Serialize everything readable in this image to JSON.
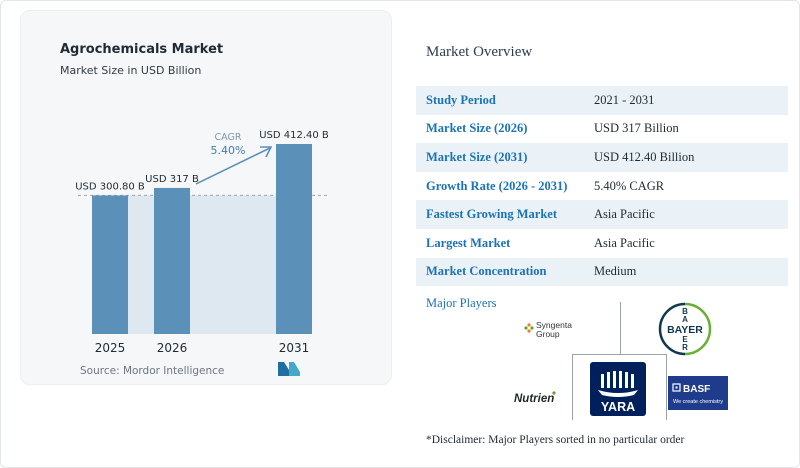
{
  "chart_data": {
    "type": "bar",
    "title": "Agrochemicals Market",
    "subtitle": "Market Size in USD Billion",
    "categories": [
      "2025",
      "2026",
      "2031"
    ],
    "values": [
      300.8,
      317,
      412.4
    ],
    "data_labels": [
      "USD 300.80 B",
      "USD 317 B",
      "USD 412.40 B"
    ],
    "cagr_label": "CAGR",
    "cagr_value": "5.40%",
    "bar_color": "#5b91b8",
    "band_color": "#dde8f0",
    "xlabel": "",
    "ylabel": "",
    "grid": false
  },
  "source": "Source: Mordor Intelligence",
  "overview": {
    "title": "Market Overview",
    "rows": [
      {
        "label": "Study Period",
        "value": "2021 - 2031"
      },
      {
        "label": "Market Size (2026)",
        "value": "USD 317 Billion"
      },
      {
        "label": "Market Size (2031)",
        "value": "USD 412.40 Billion"
      },
      {
        "label": "Growth Rate (2026 - 2031)",
        "value": "5.40% CAGR"
      },
      {
        "label": "Fastest Growing Market",
        "value": "Asia Pacific"
      },
      {
        "label": "Largest Market",
        "value": "Asia Pacific"
      },
      {
        "label": "Market Concentration",
        "value": "Medium"
      }
    ],
    "players_label": "Major Players",
    "players": {
      "syngenta_line1": "Syngenta",
      "syngenta_line2": "Group",
      "bayer": "BAYER",
      "nutrien": "Nutrien",
      "yara": "YARA",
      "basf": "BASF",
      "basf_tagline": "We create chemistry"
    },
    "disclaimer": "*Disclaimer: Major Players sorted in no particular order"
  },
  "colors": {
    "accent": "#1a73b5",
    "bayer_blue": "#10384f",
    "bayer_green": "#66b032",
    "yara_blue": "#00205b",
    "basf_blue": "#1f3c8c"
  }
}
